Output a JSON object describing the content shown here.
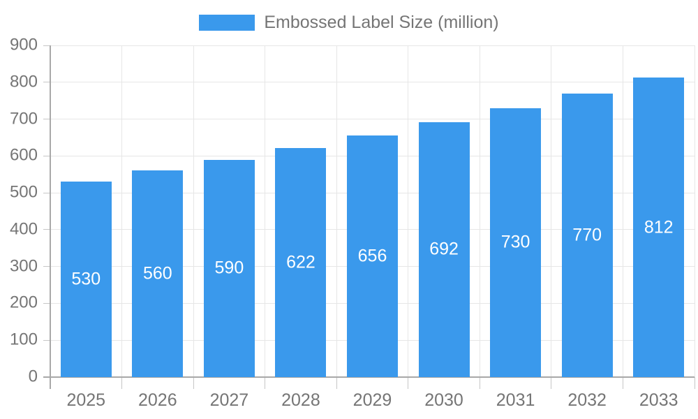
{
  "legend": {
    "label": "Embossed Label Size (million)",
    "swatch_color": "#3A99EC"
  },
  "chart_data": {
    "type": "bar",
    "title": "Embossed Label Size (million)",
    "series_name": "Embossed Label Size (million)",
    "categories": [
      "2025",
      "2026",
      "2027",
      "2028",
      "2029",
      "2030",
      "2031",
      "2032",
      "2033"
    ],
    "values": [
      530,
      560,
      590,
      622,
      656,
      692,
      730,
      770,
      812
    ],
    "ylim": [
      0,
      900
    ],
    "ytick_step": 100,
    "ytick_labels": [
      "0",
      "100",
      "200",
      "300",
      "400",
      "500",
      "600",
      "700",
      "800",
      "900"
    ],
    "grid": true,
    "legend_position": "top-center",
    "value_labels": "inside-middle",
    "colors": {
      "bar": "#3A99EC",
      "value_label": "#FFFFFF",
      "axis_text": "#757575",
      "axis_line": "#A8A8A8",
      "gridline": "#E6E6E6",
      "tick": "#C6C6C6",
      "background": "#FFFFFF"
    }
  }
}
